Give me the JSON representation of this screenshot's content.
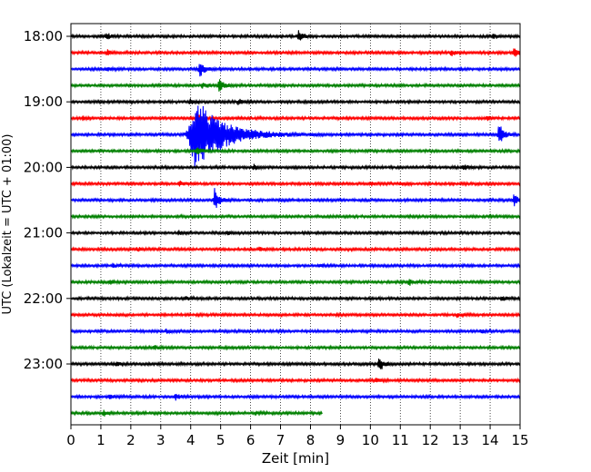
{
  "chart_data": {
    "type": "line",
    "title": "",
    "xlabel": "Zeit  [min]",
    "ylabel": "UTC (Lokalzeit = UTC + 01:00)",
    "xlim": [
      0,
      15
    ],
    "x_ticks": [
      "0",
      "1",
      "2",
      "3",
      "4",
      "5",
      "6",
      "7",
      "8",
      "9",
      "10",
      "11",
      "12",
      "13",
      "14",
      "15"
    ],
    "y_tick_labels": [
      "18:00",
      "19:00",
      "20:00",
      "21:00",
      "22:00",
      "23:00"
    ],
    "grid": "vertical dotted",
    "trace_interval_min": 15,
    "trace_colors": [
      "#000000",
      "#ff0000",
      "#0000ff",
      "#008000"
    ],
    "traces": [
      {
        "start": "18:00",
        "end_min": 15,
        "events": [
          {
            "t": 1.2,
            "amp": 3
          },
          {
            "t": 7.6,
            "amp": 7
          },
          {
            "t": 14.1,
            "amp": 3
          }
        ]
      },
      {
        "start": "18:15",
        "end_min": 15,
        "events": [
          {
            "t": 1.2,
            "amp": 3
          },
          {
            "t": 12.7,
            "amp": 3
          },
          {
            "t": 14.8,
            "amp": 5
          }
        ]
      },
      {
        "start": "18:30",
        "end_min": 15,
        "events": [
          {
            "t": 4.3,
            "amp": 10
          },
          {
            "t": 1.2,
            "amp": 3
          }
        ]
      },
      {
        "start": "18:45",
        "end_min": 15,
        "events": [
          {
            "t": 4.4,
            "amp": 3
          },
          {
            "t": 4.95,
            "amp": 7
          }
        ]
      },
      {
        "start": "19:00",
        "end_min": 15,
        "events": [
          {
            "t": 4.0,
            "amp": 3
          },
          {
            "t": 5.6,
            "amp": 3
          }
        ]
      },
      {
        "start": "19:15",
        "end_min": 15,
        "events": [
          {
            "t": 0.4,
            "amp": 2
          },
          {
            "t": 4.2,
            "amp": 6
          },
          {
            "t": 13.9,
            "amp": 2
          }
        ]
      },
      {
        "start": "19:30",
        "end_min": 15,
        "events": [
          {
            "t": 4.2,
            "amp": 40,
            "width": 1.4
          },
          {
            "t": 14.3,
            "amp": 13
          }
        ]
      },
      {
        "start": "19:45",
        "end_min": 15,
        "events": [
          {
            "t": 4.2,
            "amp": 4
          }
        ]
      },
      {
        "start": "20:00",
        "end_min": 15,
        "events": [
          {
            "t": 6.1,
            "amp": 3
          },
          {
            "t": 13.1,
            "amp": 3
          }
        ]
      },
      {
        "start": "20:15",
        "end_min": 15,
        "events": [
          {
            "t": 3.6,
            "amp": 3
          },
          {
            "t": 10.0,
            "amp": 2
          },
          {
            "t": 11.0,
            "amp": 2
          }
        ]
      },
      {
        "start": "20:30",
        "end_min": 15,
        "events": [
          {
            "t": 4.8,
            "amp": 14
          },
          {
            "t": 14.8,
            "amp": 7
          }
        ]
      },
      {
        "start": "20:45",
        "end_min": 15,
        "events": []
      },
      {
        "start": "21:00",
        "end_min": 15,
        "events": [
          {
            "t": 3.6,
            "amp": 2
          },
          {
            "t": 5.2,
            "amp": 2
          }
        ]
      },
      {
        "start": "21:15",
        "end_min": 15,
        "events": [
          {
            "t": 2.2,
            "amp": 2
          },
          {
            "t": 6.3,
            "amp": 2
          }
        ]
      },
      {
        "start": "21:30",
        "end_min": 15,
        "events": [
          {
            "t": 1.4,
            "amp": 2
          },
          {
            "t": 8.3,
            "amp": 2
          }
        ]
      },
      {
        "start": "21:45",
        "end_min": 15,
        "events": [
          {
            "t": 1.3,
            "amp": 2
          },
          {
            "t": 11.3,
            "amp": 3
          }
        ]
      },
      {
        "start": "22:00",
        "end_min": 15,
        "events": [
          {
            "t": 3.8,
            "amp": 2
          },
          {
            "t": 14.4,
            "amp": 2
          }
        ]
      },
      {
        "start": "22:15",
        "end_min": 15,
        "events": [
          {
            "t": 12.9,
            "amp": 2
          }
        ]
      },
      {
        "start": "22:30",
        "end_min": 15,
        "events": [
          {
            "t": 3.2,
            "amp": 2
          },
          {
            "t": 13.7,
            "amp": 2
          }
        ]
      },
      {
        "start": "22:45",
        "end_min": 15,
        "events": [
          {
            "t": 2.8,
            "amp": 2
          }
        ]
      },
      {
        "start": "23:00",
        "end_min": 15,
        "events": [
          {
            "t": 10.3,
            "amp": 9
          },
          {
            "t": 1.5,
            "amp": 2
          }
        ]
      },
      {
        "start": "23:15",
        "end_min": 15,
        "events": [
          {
            "t": 10.2,
            "amp": 2
          }
        ]
      },
      {
        "start": "23:30",
        "end_min": 15,
        "events": [
          {
            "t": 3.5,
            "amp": 3
          },
          {
            "t": 1.3,
            "amp": 2
          }
        ]
      },
      {
        "start": "23:45",
        "end_min": 8.4,
        "events": [
          {
            "t": 1.1,
            "amp": 3
          },
          {
            "t": 6.2,
            "amp": 2
          }
        ]
      }
    ]
  }
}
